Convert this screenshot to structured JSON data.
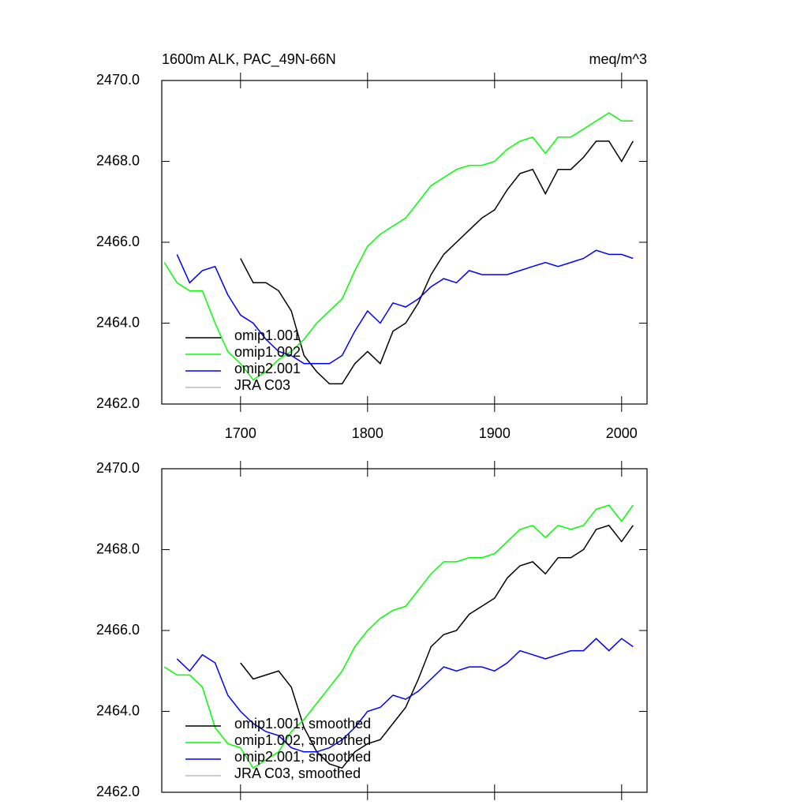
{
  "chart_data": [
    {
      "type": "line",
      "left_title": "1600m ALK, PAC_49N-66N",
      "right_title": "meq/m^3",
      "x": [
        1640,
        1650,
        1660,
        1670,
        1680,
        1690,
        1700,
        1710,
        1720,
        1730,
        1740,
        1750,
        1760,
        1770,
        1780,
        1790,
        1800,
        1810,
        1820,
        1830,
        1840,
        1850,
        1860,
        1870,
        1880,
        1890,
        1900,
        1910,
        1920,
        1930,
        1940,
        1950,
        1960,
        1970,
        1980,
        1990,
        2000,
        2009
      ],
      "xlim": [
        1638,
        2020
      ],
      "xticks": [
        1700,
        1800,
        1900,
        2000
      ],
      "ylim": [
        2462,
        2470
      ],
      "yticks": [
        {
          "value": 2462,
          "label": "2462.0"
        },
        {
          "value": 2464,
          "label": "2464.0"
        },
        {
          "value": 2466,
          "label": "2466.0"
        },
        {
          "value": 2468,
          "label": "2468.0"
        },
        {
          "value": 2470,
          "label": "2470.0"
        }
      ],
      "xtick_labels": true,
      "legend": "lower left",
      "series": [
        {
          "name": "omip1.001",
          "color": "#000000",
          "values": [
            null,
            null,
            null,
            null,
            null,
            null,
            2465.6,
            2465.0,
            2465.0,
            2464.8,
            2464.3,
            2463.2,
            2462.8,
            2462.5,
            2462.5,
            2463.0,
            2463.3,
            2463.0,
            2463.8,
            2464.0,
            2464.5,
            2465.2,
            2465.7,
            2466.0,
            2466.3,
            2466.6,
            2466.8,
            2467.3,
            2467.7,
            2467.8,
            2467.2,
            2467.8,
            2467.8,
            2468.1,
            2468.5,
            2468.5,
            2468.0,
            2468.5
          ]
        },
        {
          "name": "omip1.002",
          "color": "#00ff00",
          "values": [
            2465.5,
            2465.0,
            2464.8,
            2464.8,
            2464.0,
            2463.3,
            2463.0,
            2462.6,
            2462.8,
            2463.1,
            2463.3,
            2463.6,
            2464.0,
            2464.3,
            2464.6,
            2465.3,
            2465.9,
            2466.2,
            2466.4,
            2466.6,
            2467.0,
            2467.4,
            2467.6,
            2467.8,
            2467.9,
            2467.9,
            2468.0,
            2468.3,
            2468.5,
            2468.6,
            2468.2,
            2468.6,
            2468.6,
            2468.8,
            2469.0,
            2469.2,
            2469.0,
            2469.0
          ]
        },
        {
          "name": "omip2.001",
          "color": "#0000ff",
          "values": [
            null,
            2465.7,
            2465.0,
            2465.3,
            2465.4,
            2464.7,
            2464.2,
            2464.0,
            2463.6,
            2463.3,
            2463.2,
            2463.0,
            2463.0,
            2463.0,
            2463.2,
            2463.8,
            2464.3,
            2464.0,
            2464.5,
            2464.4,
            2464.6,
            2464.9,
            2465.1,
            2465.0,
            2465.3,
            2465.2,
            2465.2,
            2465.2,
            2465.3,
            2465.4,
            2465.5,
            2465.4,
            2465.5,
            2465.6,
            2465.8,
            2465.7,
            2465.7,
            2465.6
          ]
        },
        {
          "name": "JRA C03",
          "color": "#bbbbbb",
          "values": [
            null,
            null,
            null,
            null,
            null,
            null,
            null,
            null,
            null,
            null,
            null,
            null,
            null,
            null,
            null,
            null,
            null,
            null,
            null,
            null,
            null,
            null,
            null,
            null,
            null,
            null,
            null,
            null,
            null,
            null,
            null,
            null,
            null,
            null,
            null,
            null,
            null,
            null
          ]
        }
      ]
    },
    {
      "type": "line",
      "x": [
        1640,
        1650,
        1660,
        1670,
        1680,
        1690,
        1700,
        1710,
        1720,
        1730,
        1740,
        1750,
        1760,
        1770,
        1780,
        1790,
        1800,
        1810,
        1820,
        1830,
        1840,
        1850,
        1860,
        1870,
        1880,
        1890,
        1900,
        1910,
        1920,
        1930,
        1940,
        1950,
        1960,
        1970,
        1980,
        1990,
        2000,
        2009
      ],
      "xlim": [
        1638,
        2020
      ],
      "xticks": [
        1700,
        1800,
        1900,
        2000
      ],
      "ylim": [
        2462,
        2470
      ],
      "yticks": [
        {
          "value": 2462,
          "label": "2462.0"
        },
        {
          "value": 2464,
          "label": "2464.0"
        },
        {
          "value": 2466,
          "label": "2466.0"
        },
        {
          "value": 2468,
          "label": "2468.0"
        },
        {
          "value": 2470,
          "label": "2470.0"
        }
      ],
      "xtick_labels": false,
      "legend": "lower left",
      "series": [
        {
          "name": "omip1.001, smoothed",
          "color": "#000000",
          "values": [
            null,
            null,
            null,
            null,
            null,
            null,
            2465.2,
            2464.8,
            2464.9,
            2465.0,
            2464.6,
            2463.6,
            2463.0,
            2462.7,
            2462.6,
            2463.0,
            2463.2,
            2463.3,
            2463.7,
            2464.1,
            2464.8,
            2465.6,
            2465.9,
            2466.0,
            2466.4,
            2466.6,
            2466.8,
            2467.3,
            2467.6,
            2467.7,
            2467.4,
            2467.8,
            2467.8,
            2468.0,
            2468.5,
            2468.6,
            2468.2,
            2468.6
          ]
        },
        {
          "name": "omip1.002, smoothed",
          "color": "#00ff00",
          "values": [
            2465.1,
            2464.9,
            2464.9,
            2464.6,
            2463.6,
            2463.2,
            2463.1,
            2462.6,
            2462.8,
            2463.0,
            2463.5,
            2463.8,
            2464.2,
            2464.6,
            2465.0,
            2465.6,
            2466.0,
            2466.3,
            2466.5,
            2466.6,
            2467.0,
            2467.4,
            2467.7,
            2467.7,
            2467.8,
            2467.8,
            2467.9,
            2468.2,
            2468.5,
            2468.6,
            2468.3,
            2468.6,
            2468.5,
            2468.6,
            2469.0,
            2469.1,
            2468.7,
            2469.1
          ]
        },
        {
          "name": "omip2.001, smoothed",
          "color": "#0000ff",
          "values": [
            null,
            2465.3,
            2465.0,
            2465.4,
            2465.2,
            2464.4,
            2464.0,
            2463.7,
            2463.5,
            2463.4,
            2463.1,
            2463.0,
            2463.0,
            2463.1,
            2463.3,
            2463.6,
            2464.0,
            2464.1,
            2464.4,
            2464.3,
            2464.5,
            2464.8,
            2465.1,
            2465.0,
            2465.1,
            2465.1,
            2465.0,
            2465.2,
            2465.5,
            2465.4,
            2465.3,
            2465.4,
            2465.5,
            2465.5,
            2465.8,
            2465.5,
            2465.8,
            2465.6
          ]
        },
        {
          "name": "JRA C03, smoothed",
          "color": "#bbbbbb",
          "values": [
            null,
            null,
            null,
            null,
            null,
            null,
            null,
            null,
            null,
            null,
            null,
            null,
            null,
            null,
            null,
            null,
            null,
            null,
            null,
            null,
            null,
            null,
            null,
            null,
            null,
            null,
            null,
            null,
            null,
            null,
            null,
            null,
            null,
            null,
            null,
            null,
            null,
            null
          ]
        }
      ]
    }
  ]
}
